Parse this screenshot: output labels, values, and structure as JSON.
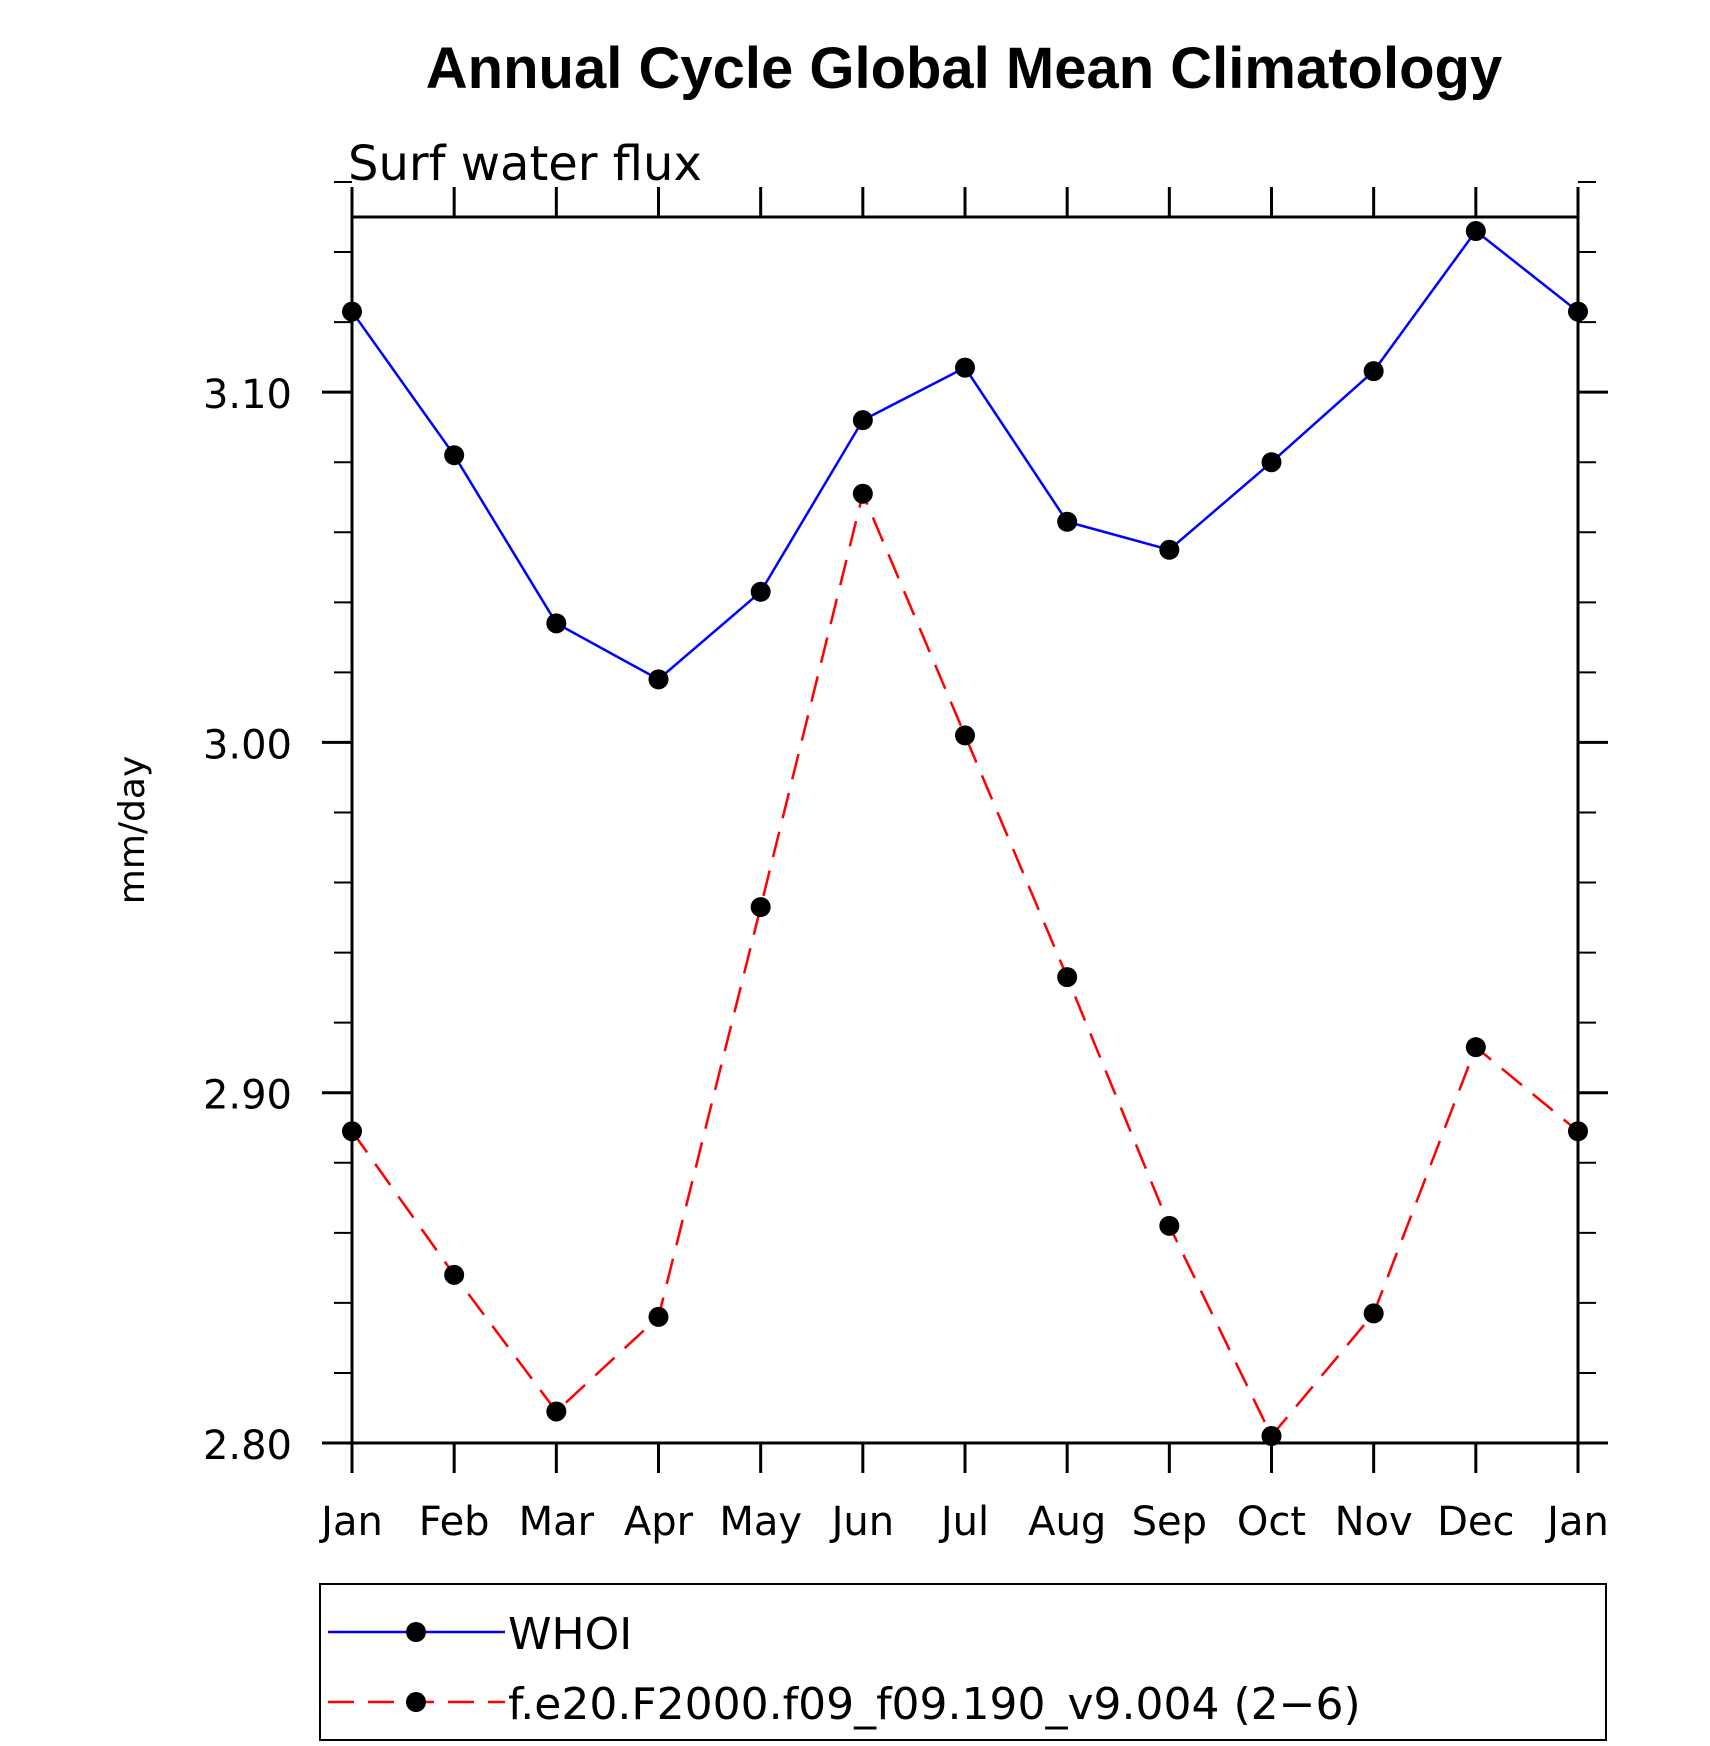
{
  "chart_data": {
    "type": "line",
    "title": "Annual Cycle Global Mean Climatology",
    "subtitle": "Surf water flux",
    "xlabel": "",
    "ylabel": "mm/day",
    "categories": [
      "Jan",
      "Feb",
      "Mar",
      "Apr",
      "May",
      "Jun",
      "Jul",
      "Aug",
      "Sep",
      "Oct",
      "Nov",
      "Dec",
      "Jan"
    ],
    "ylim": [
      2.8,
      3.15
    ],
    "yticks": [
      2.8,
      2.9,
      3.0,
      3.1
    ],
    "ytick_labels": [
      "2.80",
      "2.90",
      "3.00",
      "3.10"
    ],
    "yminor_step": 0.02,
    "legend_position": "bottom",
    "series": [
      {
        "name": "WHOI",
        "color": "#0000ff",
        "style": "solid",
        "marker": "circle",
        "values": [
          3.123,
          3.082,
          3.034,
          3.018,
          3.043,
          3.092,
          3.107,
          3.063,
          3.055,
          3.08,
          3.106,
          3.146,
          3.123
        ]
      },
      {
        "name": "f.e20.F2000.f09_f09.190_v9.004 (2−6)",
        "color": "#ff0000",
        "style": "dashed",
        "marker": "circle",
        "values": [
          2.889,
          2.848,
          2.809,
          2.836,
          2.953,
          3.071,
          3.002,
          2.933,
          2.862,
          2.802,
          2.837,
          2.913,
          2.889
        ]
      }
    ]
  }
}
